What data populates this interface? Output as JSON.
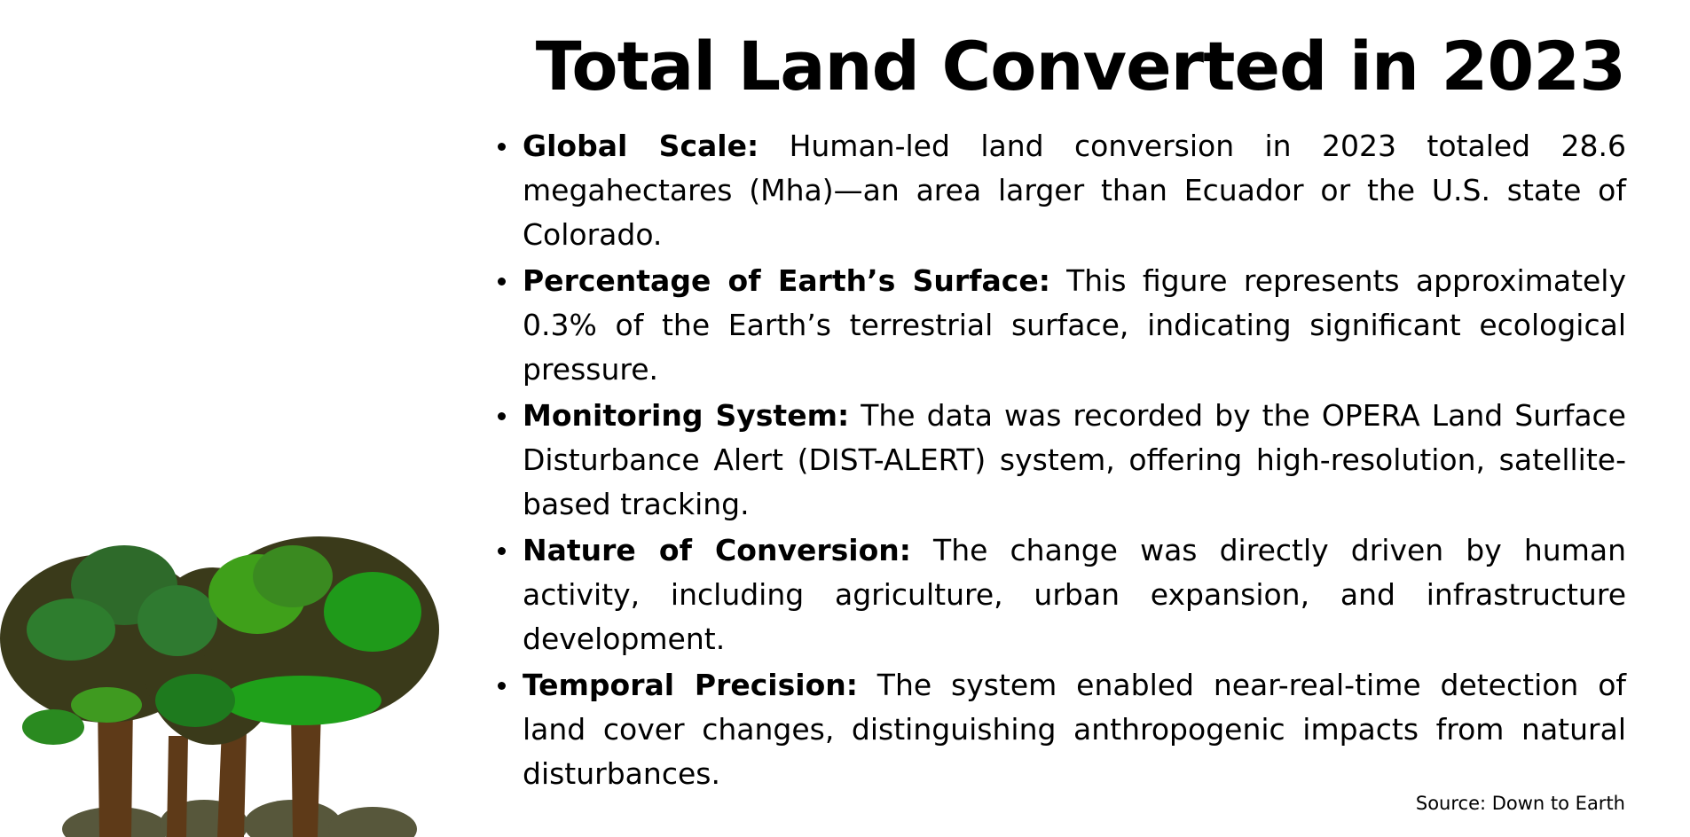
{
  "title": "Total Land Converted in 2023",
  "bullets": [
    {
      "label": "Global Scale:",
      "text": " Human-led land conversion in 2023 totaled 28.6 megahectares (Mha)—an area larger than Ecuador or the U.S. state of Colorado."
    },
    {
      "label": "Percentage of Earth’s Surface:",
      "text": " This figure represents approximately 0.3% of the Earth’s terrestrial surface, indicating significant ecological pressure."
    },
    {
      "label": "Monitoring System:",
      "text": " The data was recorded by the OPERA Land Surface Disturbance Alert (DIST-ALERT) system, offering high-resolution, satellite-based tracking."
    },
    {
      "label": "Nature of Conversion:",
      "text": " The change was directly driven by human activity, including agriculture, urban expansion, and infrastructure development."
    },
    {
      "label": "Temporal Precision:",
      "text": " The system enabled near-real-time detection of land cover changes, distinguishing anthropogenic impacts from natural disturbances."
    }
  ],
  "source": "Source: Down to Earth",
  "illustration": {
    "icon": "tree-cluster-illustration",
    "colors": {
      "dark": "#3a3a1a",
      "green": "#2e7d1e",
      "bright": "#3fae1a",
      "trunk": "#6b3f1a"
    }
  }
}
